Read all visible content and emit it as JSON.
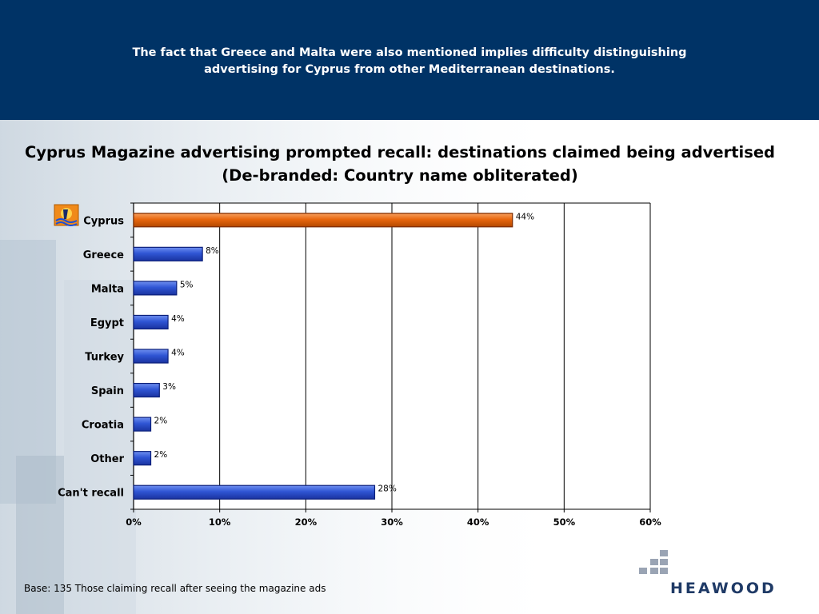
{
  "header": {
    "line1": "The fact that Greece and Malta were also mentioned implies difficulty distinguishing",
    "line2": "advertising for Cyprus from other Mediterranean destinations."
  },
  "chart_title": {
    "line1": "Cyprus Magazine advertising prompted recall: destinations claimed being advertised",
    "line2": "(De-branded: Country name obliterated)"
  },
  "chart_data": {
    "type": "bar",
    "orientation": "horizontal",
    "categories": [
      "Cyprus",
      "Greece",
      "Malta",
      "Egypt",
      "Turkey",
      "Spain",
      "Croatia",
      "Other",
      "Can't recall"
    ],
    "values": [
      44,
      8,
      5,
      4,
      4,
      3,
      2,
      2,
      28
    ],
    "data_labels": [
      "44%",
      "8%",
      "5%",
      "4%",
      "4%",
      "3%",
      "2%",
      "2%",
      "28%"
    ],
    "xlim": [
      0,
      60
    ],
    "x_ticks": [
      "0%",
      "10%",
      "20%",
      "30%",
      "40%",
      "50%",
      "60%"
    ],
    "x_tick_values": [
      0,
      10,
      20,
      30,
      40,
      50,
      60
    ],
    "grid": true,
    "colors": {
      "highlight": "#e8660e",
      "highlight_dark": "#7a2a00",
      "default": "#2f55d4",
      "default_dark": "#0b1f7a",
      "grid": "#000000"
    },
    "highlight_category": "Cyprus",
    "icons": {
      "Cyprus": "cyprus-flag-icon"
    }
  },
  "footnote": "Base: 135 Those claiming recall after seeing the magazine ads",
  "brand": {
    "name": "HEAWOOD",
    "primary_color": "#003366",
    "logo_text_color": "#1f3a66",
    "logo_block_color": "#9aa4b4"
  }
}
